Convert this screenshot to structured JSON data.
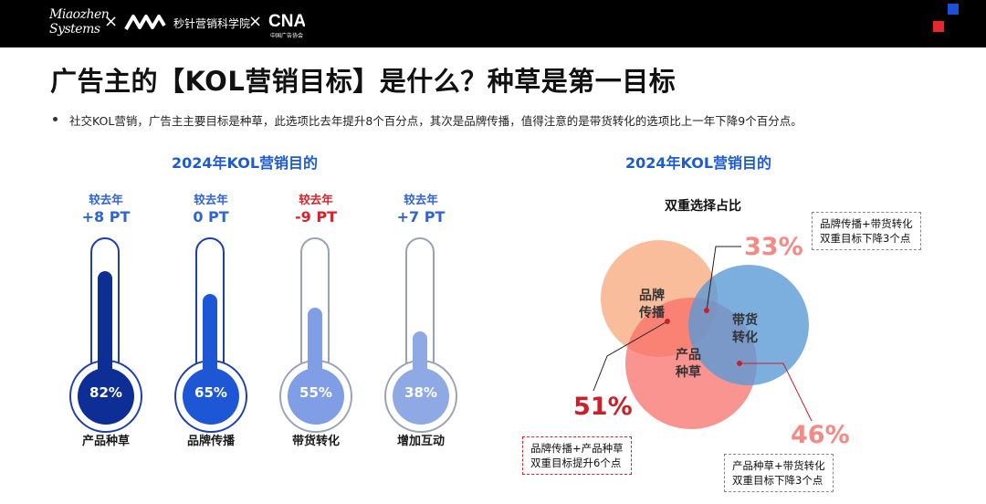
{
  "header": {
    "logo1": [
      "Miaozhen",
      "Systems"
    ],
    "separator": "×",
    "logo2_text": "秒针营销科学院",
    "logo3_mark": "CNA",
    "logo3_text": "中国广告协会",
    "colors": {
      "bar": "#000000",
      "accent_blue": "#1d4fd8",
      "accent_red": "#e8262b"
    }
  },
  "title": "广告主的【KOL营销目标】是什么？种草是第一目标",
  "bullet": "社交KOL营销，广告主主要目标是种草，此选项比去年提升8个百分点，其次是品牌传播，值得注意的是带货转化的选项比上一年下降9个百分点。",
  "left_chart": {
    "title": "2024年KOL营销目的",
    "items": [
      {
        "caption": "较去年",
        "change": "+8 PT",
        "value": 82,
        "value_label": "82%",
        "label": "产品种草",
        "color": "#0d2f95",
        "caption_color": "#2f63d6"
      },
      {
        "caption": "较去年",
        "change": "0 PT",
        "value": 65,
        "value_label": "65%",
        "label": "品牌传播",
        "color": "#1e57d6",
        "caption_color": "#2f63d6"
      },
      {
        "caption": "较去年",
        "change": "-9 PT",
        "value": 55,
        "value_label": "55%",
        "label": "带货转化",
        "color": "#7f9ee6",
        "caption_color": "#d8232a"
      },
      {
        "caption": "较去年",
        "change": "+7 PT",
        "value": 38,
        "value_label": "38%",
        "label": "增加互动",
        "color": "#8fa9e4",
        "caption_color": "#2f63d6"
      }
    ]
  },
  "right_chart": {
    "title": "2024年KOL营销目的",
    "subtitle": "双重选择占比",
    "circles": [
      {
        "label": "品牌传播",
        "color": "#f7a77a"
      },
      {
        "label": "产品种草",
        "color": "#f77a74"
      },
      {
        "label": "带货转化",
        "color": "#5b9ad6"
      }
    ],
    "overlaps": [
      {
        "pct": "33%",
        "note": [
          "品牌传播+带货转化",
          "双重目标下降3个点"
        ],
        "color": "#f48a86"
      },
      {
        "pct": "51%",
        "note": [
          "品牌传播+产品种草",
          "双重目标提升6个点"
        ],
        "color": "#c9202a"
      },
      {
        "pct": "46%",
        "note": [
          "产品种草+带货转化",
          "双重目标下降3个点"
        ],
        "color": "#f48a86"
      }
    ]
  }
}
